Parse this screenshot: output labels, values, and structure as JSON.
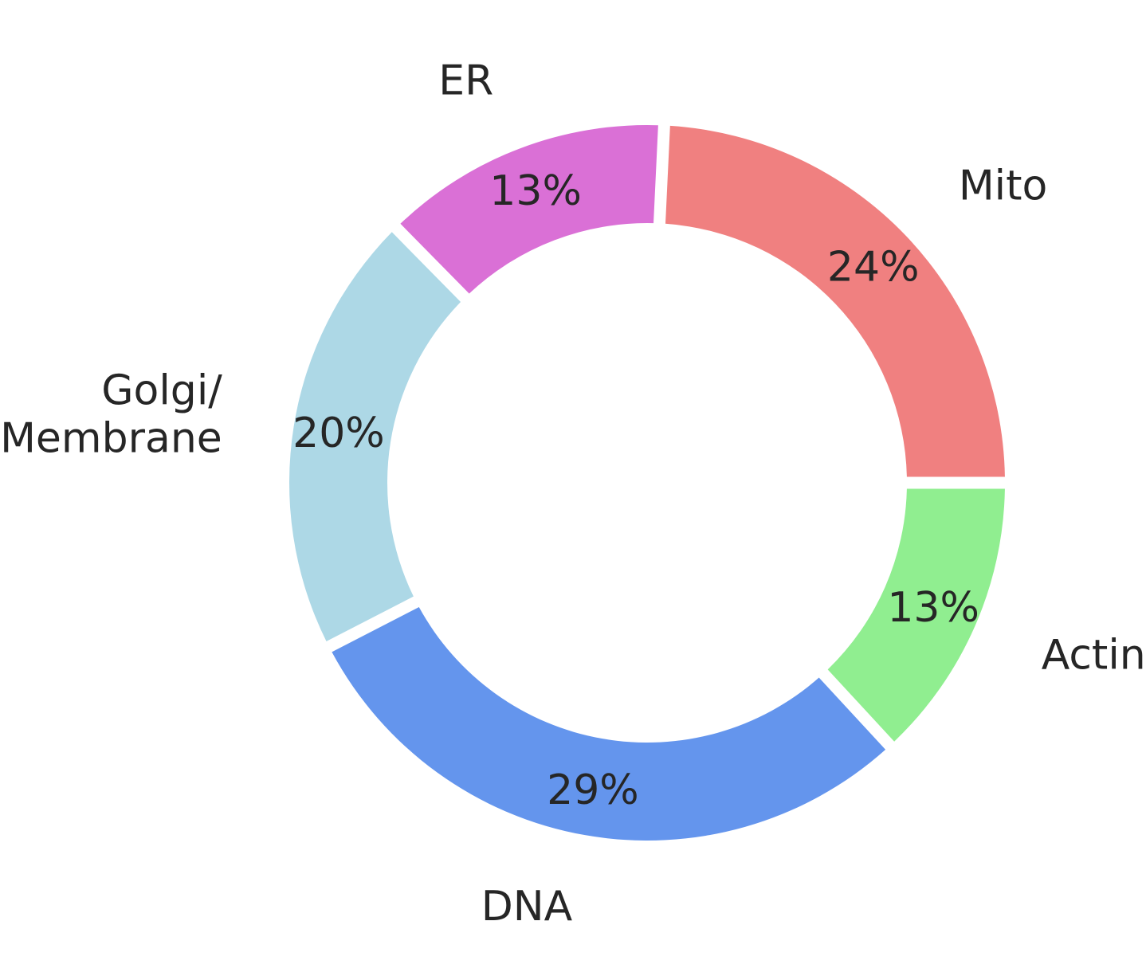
{
  "chart_data": {
    "type": "pie",
    "style": "donut",
    "start": "right-center",
    "direction": "counterclockwise",
    "slices": [
      {
        "label": "Mito",
        "value": 24,
        "display": "24%",
        "color": "#F08080"
      },
      {
        "label": "ER",
        "value": 13,
        "display": "13%",
        "color": "#DA70D6"
      },
      {
        "label": "Golgi/\nMembrane",
        "value": 20,
        "display": "20%",
        "color": "#ADD8E6"
      },
      {
        "label": "DNA",
        "value": 29,
        "display": "29%",
        "color": "#6495ED"
      },
      {
        "label": "Actin",
        "value": 13,
        "display": "13%",
        "color": "#90EE90"
      }
    ]
  }
}
